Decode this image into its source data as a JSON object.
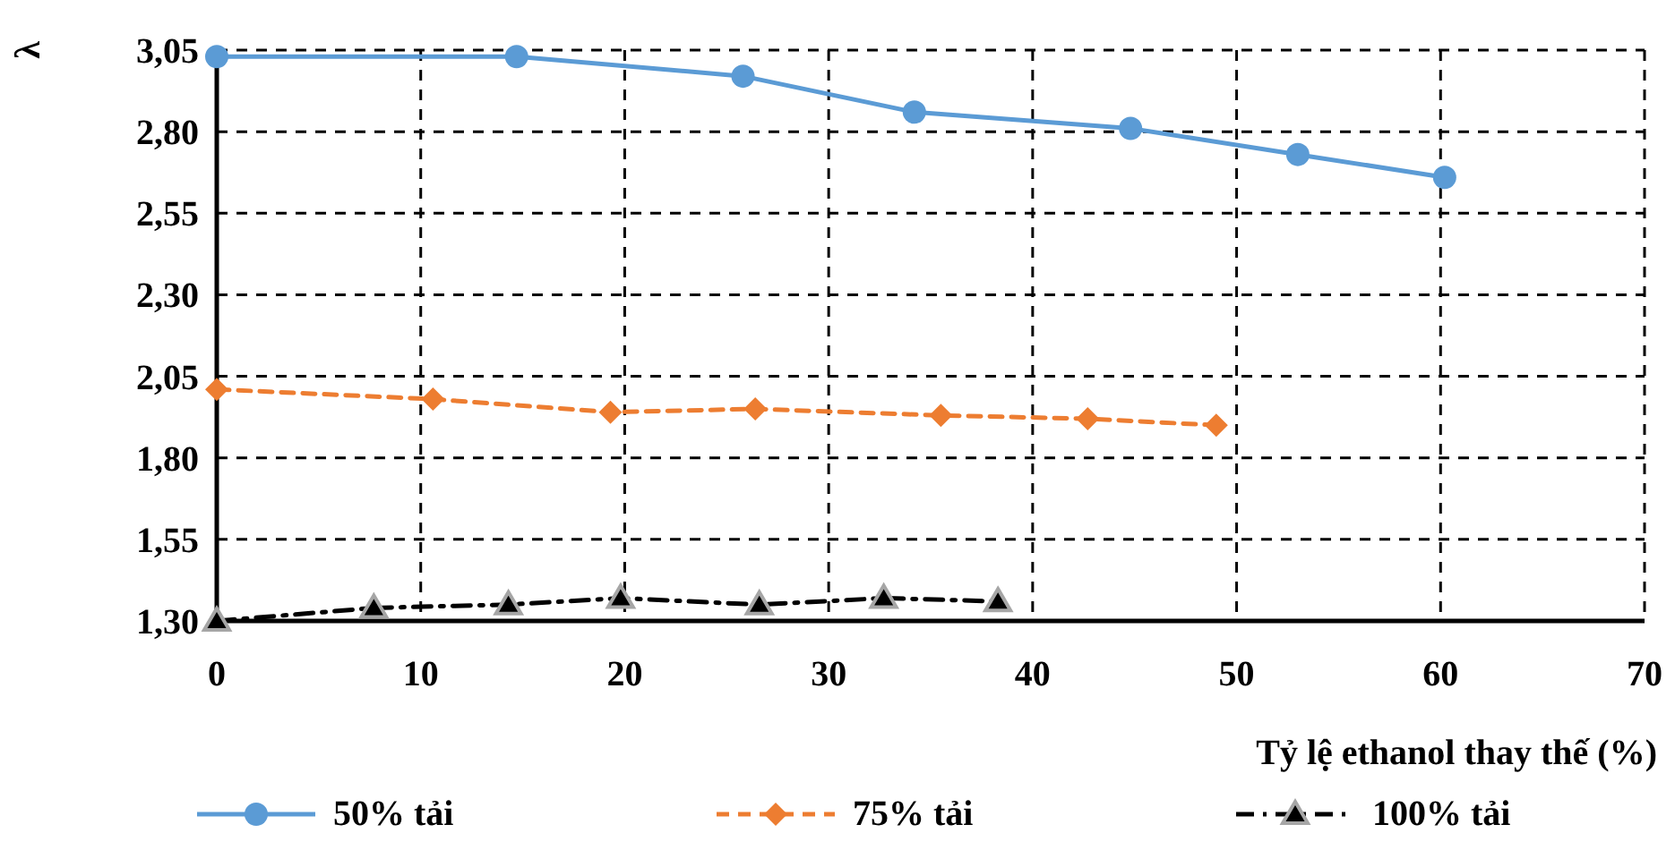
{
  "chart_data": {
    "type": "line",
    "xlabel": "Tỷ lệ ethanol thay thế (%)",
    "ylabel": "λ",
    "xlim": [
      0,
      70
    ],
    "xticks": [
      0,
      10,
      20,
      30,
      40,
      50,
      60,
      70
    ],
    "ylim": [
      1.3,
      3.05
    ],
    "yticks": [
      {
        "value": 1.3,
        "label": "1,30"
      },
      {
        "value": 1.55,
        "label": "1,55"
      },
      {
        "value": 1.8,
        "label": "1,80"
      },
      {
        "value": 2.05,
        "label": "2,05"
      },
      {
        "value": 2.3,
        "label": "2,30"
      },
      {
        "value": 2.55,
        "label": "2,55"
      },
      {
        "value": 2.8,
        "label": "2,80"
      },
      {
        "value": 3.05,
        "label": "3,05"
      }
    ],
    "grid": true,
    "legend": "bottom",
    "series": [
      {
        "name": "50% tải",
        "color": "#5b9bd5",
        "marker": "circle",
        "line_style": "solid",
        "x": [
          0,
          14.7,
          25.8,
          34.2,
          44.8,
          53.0,
          60.2
        ],
        "values": [
          3.03,
          3.03,
          2.97,
          2.86,
          2.81,
          2.73,
          2.66
        ]
      },
      {
        "name": "75% tải",
        "color": "#ed7d31",
        "marker": "diamond",
        "line_style": "dashed",
        "x": [
          0,
          10.6,
          19.3,
          26.4,
          35.5,
          42.7,
          49.0
        ],
        "values": [
          2.01,
          1.98,
          1.94,
          1.95,
          1.93,
          1.92,
          1.9
        ]
      },
      {
        "name": "100% tải",
        "color": "#000000",
        "marker": "triangle",
        "line_style": "dashdot",
        "x": [
          0,
          7.7,
          14.3,
          19.8,
          26.6,
          32.7,
          38.3
        ],
        "values": [
          1.3,
          1.34,
          1.35,
          1.37,
          1.35,
          1.37,
          1.36
        ]
      }
    ]
  }
}
